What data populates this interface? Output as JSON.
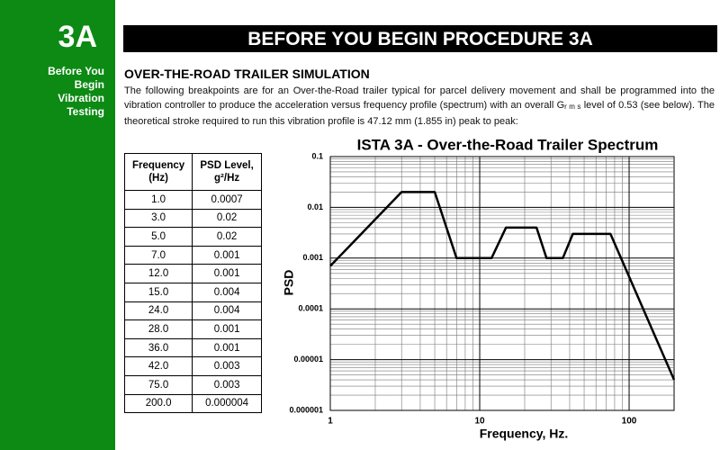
{
  "sidebar": {
    "code": "3A",
    "lines": [
      "Before You",
      "Begin",
      "Vibration",
      "Testing"
    ]
  },
  "header": {
    "title": "BEFORE YOU BEGIN PROCEDURE 3A"
  },
  "section": {
    "title": "OVER-THE-ROAD TRAILER SIMULATION",
    "paragraph": [
      "The following breakpoints are for an Over-the-Road trailer typical for parcel delivery movement and shall be programmed into the vibration controller to produce the acceleration versus frequency profile (spectrum) with an overall G",
      "r m s",
      " level of 0.53 (see below). The theoretical stroke required to run this vibration profile is 47.12 mm (1.855 in) peak to peak:"
    ]
  },
  "table": {
    "headers": [
      [
        "Frequency",
        "(Hz)"
      ],
      [
        "PSD Level,",
        "g²/Hz"
      ]
    ],
    "rows": [
      [
        "1.0",
        "0.0007"
      ],
      [
        "3.0",
        "0.02"
      ],
      [
        "5.0",
        "0.02"
      ],
      [
        "7.0",
        "0.001"
      ],
      [
        "12.0",
        "0.001"
      ],
      [
        "15.0",
        "0.004"
      ],
      [
        "24.0",
        "0.004"
      ],
      [
        "28.0",
        "0.001"
      ],
      [
        "36.0",
        "0.001"
      ],
      [
        "42.0",
        "0.003"
      ],
      [
        "75.0",
        "0.003"
      ],
      [
        "200.0",
        "0.000004"
      ]
    ]
  },
  "chart_data": {
    "type": "line",
    "title": "ISTA 3A  -  Over-the-Road Trailer Spectrum",
    "xlabel": "Frequency, Hz.",
    "ylabel": "PSD",
    "x": [
      1,
      3,
      5,
      7,
      12,
      15,
      24,
      28,
      36,
      42,
      75,
      200
    ],
    "values": [
      0.0007,
      0.02,
      0.02,
      0.001,
      0.001,
      0.004,
      0.004,
      0.001,
      0.001,
      0.003,
      0.003,
      4e-06
    ],
    "color": "#000000",
    "xscale": "log",
    "yscale": "log",
    "xlim": [
      1,
      200
    ],
    "ylim": [
      1e-06,
      0.1
    ],
    "xticks": [
      1,
      10,
      100
    ],
    "yticks": [
      0.1,
      0.01,
      0.001,
      0.0001,
      1e-05,
      1e-06
    ],
    "grid": true
  }
}
